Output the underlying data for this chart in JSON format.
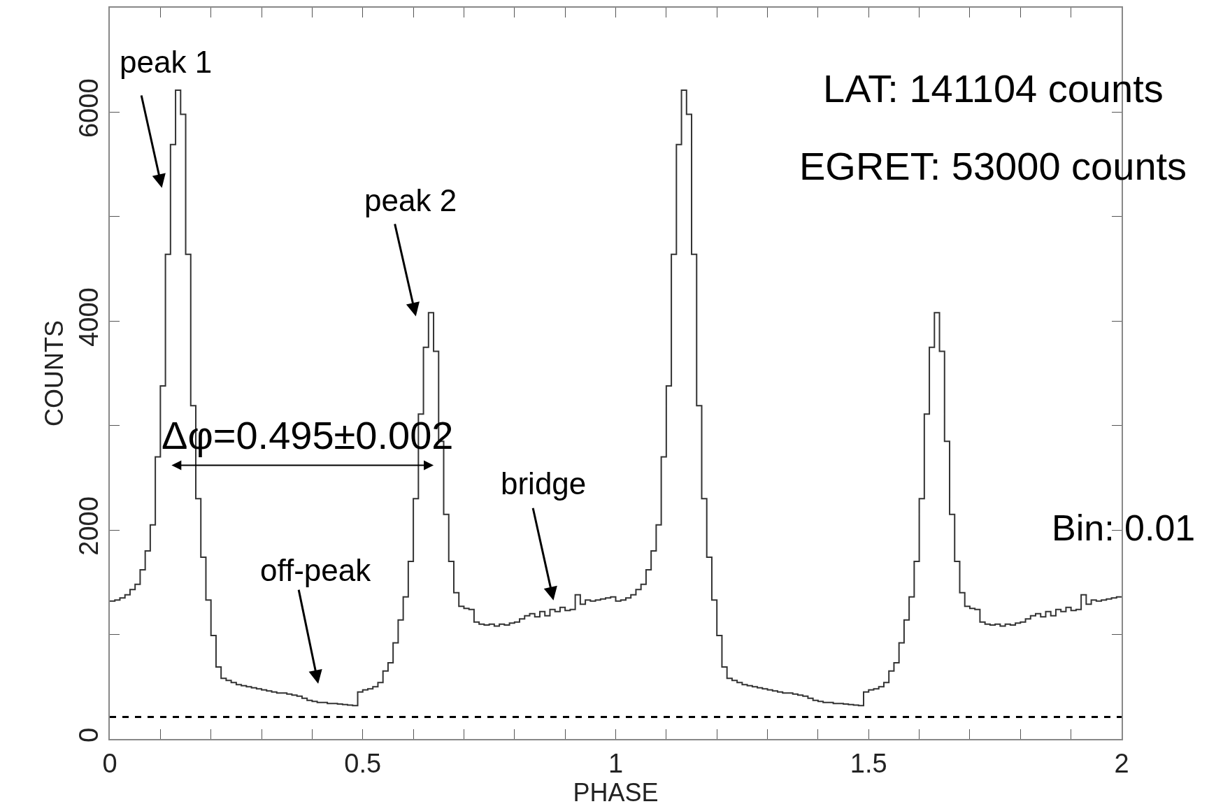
{
  "chart_data": {
    "type": "histogram",
    "xlabel": "PHASE",
    "ylabel": "COUNTS",
    "color": "#333333",
    "bins": [
      0,
      0.01,
      0.02,
      0.03,
      0.04,
      0.05,
      0.06,
      0.07,
      0.08,
      0.09,
      0.1,
      0.11,
      0.12,
      0.13,
      0.14,
      0.15,
      0.16,
      0.17,
      0.18,
      0.19,
      0.2,
      0.21,
      0.22,
      0.23,
      0.24,
      0.25,
      0.26,
      0.27,
      0.28,
      0.29,
      0.3,
      0.31,
      0.32,
      0.33,
      0.34,
      0.35,
      0.36,
      0.37,
      0.38,
      0.39,
      0.4,
      0.41,
      0.42,
      0.43,
      0.44,
      0.45,
      0.46,
      0.47,
      0.48,
      0.49,
      0.5,
      0.51,
      0.52,
      0.53,
      0.54,
      0.55,
      0.56,
      0.57,
      0.58,
      0.59,
      0.6,
      0.61,
      0.62,
      0.63,
      0.64,
      0.65,
      0.66,
      0.67,
      0.68,
      0.69,
      0.7,
      0.71,
      0.72,
      0.73,
      0.74,
      0.75,
      0.76,
      0.77,
      0.78,
      0.79,
      0.8,
      0.81,
      0.82,
      0.83,
      0.84,
      0.85,
      0.86,
      0.87,
      0.88,
      0.89,
      0.9,
      0.91,
      0.92,
      0.93,
      0.94,
      0.95,
      0.96,
      0.97,
      0.98,
      0.99,
      1,
      1.01,
      1.02,
      1.03,
      1.04,
      1.05,
      1.06,
      1.07,
      1.08,
      1.09,
      1.1,
      1.11,
      1.12,
      1.13,
      1.14,
      1.15,
      1.16,
      1.17,
      1.18,
      1.19,
      1.2,
      1.21,
      1.22,
      1.23,
      1.24,
      1.25,
      1.26,
      1.27,
      1.28,
      1.29,
      1.3,
      1.31,
      1.32,
      1.33,
      1.34,
      1.35,
      1.36,
      1.37,
      1.38,
      1.39,
      1.4,
      1.41,
      1.42,
      1.43,
      1.44,
      1.45,
      1.46,
      1.47,
      1.48,
      1.49,
      1.5,
      1.51,
      1.52,
      1.53,
      1.54,
      1.55,
      1.56,
      1.57,
      1.58,
      1.59,
      1.6,
      1.61,
      1.62,
      1.63,
      1.64,
      1.65,
      1.66,
      1.67,
      1.68,
      1.69,
      1.7,
      1.71,
      1.72,
      1.73,
      1.74,
      1.75,
      1.76,
      1.77,
      1.78,
      1.79,
      1.8,
      1.81,
      1.82,
      1.83,
      1.84,
      1.85,
      1.86,
      1.87,
      1.88,
      1.89,
      1.9,
      1.91,
      1.92,
      1.93,
      1.94,
      1.95,
      1.96,
      1.97,
      1.98,
      1.99,
      2
    ],
    "values": [
      1320,
      1330,
      1350,
      1380,
      1430,
      1480,
      1620,
      1800,
      2050,
      2700,
      3380,
      4640,
      5690,
      6210,
      5980,
      4640,
      3190,
      2300,
      1740,
      1330,
      990,
      690,
      580,
      560,
      540,
      520,
      510,
      500,
      490,
      480,
      470,
      460,
      450,
      440,
      440,
      430,
      420,
      410,
      390,
      370,
      360,
      350,
      350,
      340,
      340,
      335,
      330,
      325,
      320,
      450,
      470,
      480,
      500,
      540,
      650,
      730,
      920,
      1140,
      1360,
      1700,
      2300,
      3110,
      3750,
      4080,
      3710,
      2850,
      2150,
      1700,
      1400,
      1270,
      1250,
      1240,
      1120,
      1100,
      1090,
      1100,
      1080,
      1100,
      1090,
      1110,
      1120,
      1150,
      1180,
      1200,
      1170,
      1220,
      1180,
      1240,
      1220,
      1260,
      1230,
      1240,
      1380,
      1290,
      1330,
      1320,
      1330,
      1340,
      1350,
      1360,
      1320,
      1330,
      1350,
      1380,
      1430,
      1480,
      1620,
      1800,
      2050,
      2700,
      3380,
      4640,
      5690,
      6210,
      5980,
      4640,
      3190,
      2300,
      1740,
      1330,
      990,
      690,
      580,
      560,
      540,
      520,
      510,
      500,
      490,
      480,
      470,
      460,
      450,
      440,
      440,
      430,
      420,
      410,
      390,
      370,
      360,
      350,
      350,
      340,
      340,
      335,
      330,
      325,
      320,
      450,
      470,
      480,
      500,
      540,
      650,
      730,
      920,
      1140,
      1360,
      1700,
      2300,
      3110,
      3750,
      4080,
      3710,
      2850,
      2150,
      1700,
      1400,
      1270,
      1250,
      1240,
      1120,
      1100,
      1090,
      1100,
      1080,
      1100,
      1090,
      1110,
      1120,
      1150,
      1180,
      1200,
      1170,
      1220,
      1180,
      1240,
      1220,
      1260,
      1230,
      1240,
      1380,
      1290,
      1330,
      1320,
      1330,
      1340,
      1350,
      1360
    ],
    "xlim": [
      0,
      2
    ],
    "ylim": [
      0,
      7000
    ],
    "xticks": [
      0,
      {
        "value": 0.1,
        "label": null
      },
      {
        "value": 0.2,
        "label": null
      },
      {
        "value": 0.3,
        "label": null
      },
      {
        "value": 0.4,
        "label": null
      },
      0.5,
      {
        "value": 0.6,
        "label": null
      },
      {
        "value": 0.7,
        "label": null
      },
      {
        "value": 0.8,
        "label": null
      },
      {
        "value": 0.9,
        "label": null
      },
      1,
      {
        "value": 1.1,
        "label": null
      },
      {
        "value": 1.2,
        "label": null
      },
      {
        "value": 1.3,
        "label": null
      },
      {
        "value": 1.4,
        "label": null
      },
      1.5,
      {
        "value": 1.6,
        "label": null
      },
      {
        "value": 1.7,
        "label": null
      },
      {
        "value": 1.8,
        "label": null
      },
      {
        "value": 1.9,
        "label": null
      },
      2
    ],
    "yticks": [
      0,
      {
        "value": 1000,
        "label": null
      },
      2000,
      {
        "value": 3000,
        "label": null
      },
      4000,
      {
        "value": 5000,
        "label": null
      },
      6000
    ],
    "grid": false,
    "ref_lines": [
      {
        "axis": "y",
        "value": 210,
        "line_style": "dashed",
        "color": "#000000"
      }
    ],
    "annotations": [
      "peak 1",
      "peak 2",
      "off-peak",
      "bridge",
      "Δφ=0.495±0.002",
      "LAT: 141104 counts",
      "EGRET: 53000 counts",
      "Bin: 0.01"
    ]
  }
}
